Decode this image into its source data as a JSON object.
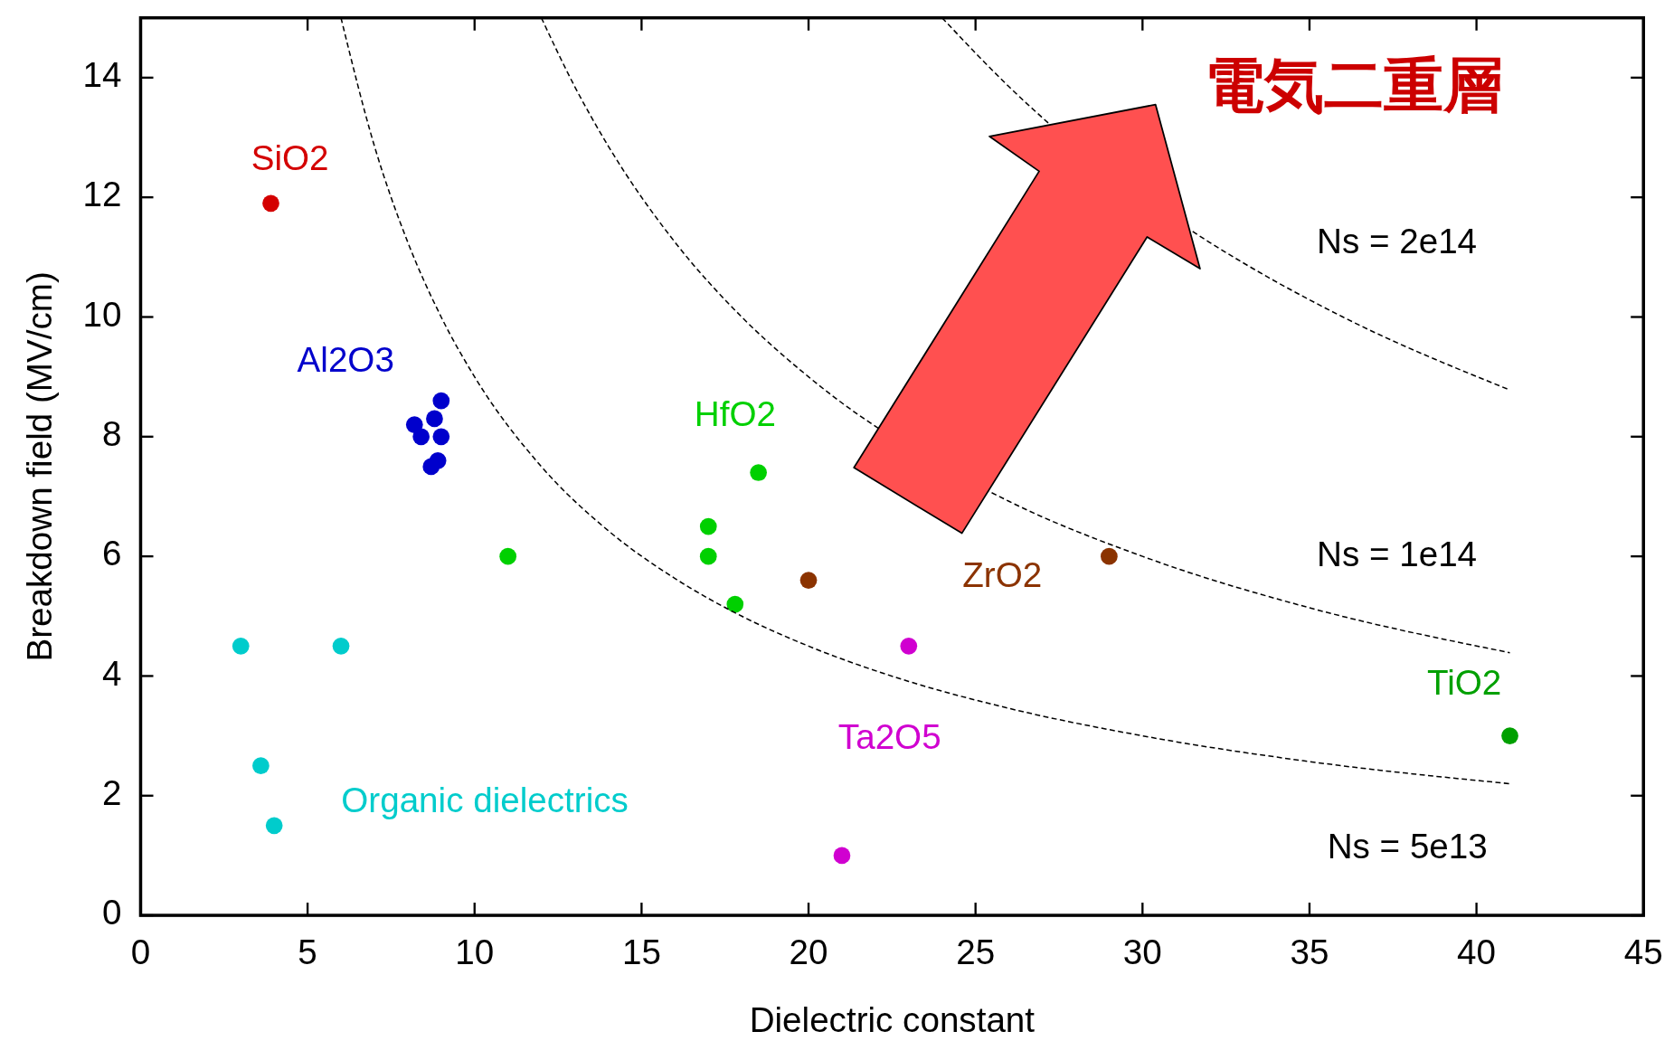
{
  "chart_data": {
    "type": "scatter",
    "xlabel": "Dielectric constant",
    "ylabel": "Breakdown field (MV/cm)",
    "xlim": [
      0,
      45
    ],
    "ylim": [
      0,
      15
    ],
    "xticks": [
      0,
      5,
      10,
      15,
      20,
      25,
      30,
      35,
      40,
      45
    ],
    "yticks": [
      0,
      2,
      4,
      6,
      8,
      10,
      12,
      14
    ],
    "marker": "circle",
    "series": [
      {
        "name": "SiO2",
        "color": "#d40000",
        "x": [
          3.9
        ],
        "values": [
          11.9
        ]
      },
      {
        "name": "Al2O3",
        "color": "#0000cc",
        "x": [
          8.2,
          8.4,
          8.8,
          9.0,
          9.0,
          8.9,
          8.7
        ],
        "values": [
          8.2,
          8.0,
          8.3,
          8.6,
          8.0,
          7.6,
          7.5
        ]
      },
      {
        "name": "HfO2",
        "color": "#00d000",
        "x": [
          11.0,
          17.0,
          17.0,
          17.8,
          18.5
        ],
        "values": [
          6.0,
          6.5,
          6.0,
          5.2,
          7.4
        ]
      },
      {
        "name": "ZrO2",
        "color": "#8b3300",
        "x": [
          20.0,
          29.0
        ],
        "values": [
          5.6,
          6.0
        ]
      },
      {
        "name": "Ta2O5",
        "color": "#d000d0",
        "x": [
          23.0,
          21.0
        ],
        "values": [
          4.5,
          1.0
        ]
      },
      {
        "name": "TiO2",
        "color": "#00a000",
        "x": [
          41.0
        ],
        "values": [
          3.0
        ]
      },
      {
        "name": "Organic dielectrics",
        "color": "#00cccc",
        "x": [
          3.0,
          6.0,
          3.6,
          4.0
        ],
        "values": [
          4.5,
          4.5,
          2.5,
          1.5
        ]
      },
      {
        "type": "line",
        "color": "#000000",
        "line_style": "dashed",
        "marker": "none",
        "x": [
          6,
          7,
          8,
          9,
          10,
          12,
          14,
          16,
          18,
          20,
          23,
          26,
          30,
          35,
          41
        ],
        "values": [
          15,
          12.86,
          11.25,
          10,
          9,
          7.5,
          6.43,
          5.63,
          5,
          4.5,
          3.91,
          3.46,
          3,
          2.57,
          2.2
        ]
      },
      {
        "type": "line",
        "color": "#000000",
        "line_style": "dashed",
        "marker": "none",
        "x": [
          12,
          13,
          14,
          16,
          18,
          20,
          26,
          30,
          35,
          41
        ],
        "values": [
          15,
          13.85,
          12.86,
          11.25,
          10,
          9,
          6.92,
          6,
          5.14,
          4.39
        ]
      },
      {
        "type": "line",
        "color": "#000000",
        "line_style": "dashed",
        "marker": "none",
        "x": [
          24,
          26,
          32,
          33,
          36,
          41
        ],
        "values": [
          15,
          13.85,
          11.25,
          10.91,
          10,
          8.78
        ]
      }
    ],
    "annotations": [
      "Ns = 2e14",
      "Ns = 1e14",
      "Ns = 5e13",
      "電気二重層"
    ]
  }
}
